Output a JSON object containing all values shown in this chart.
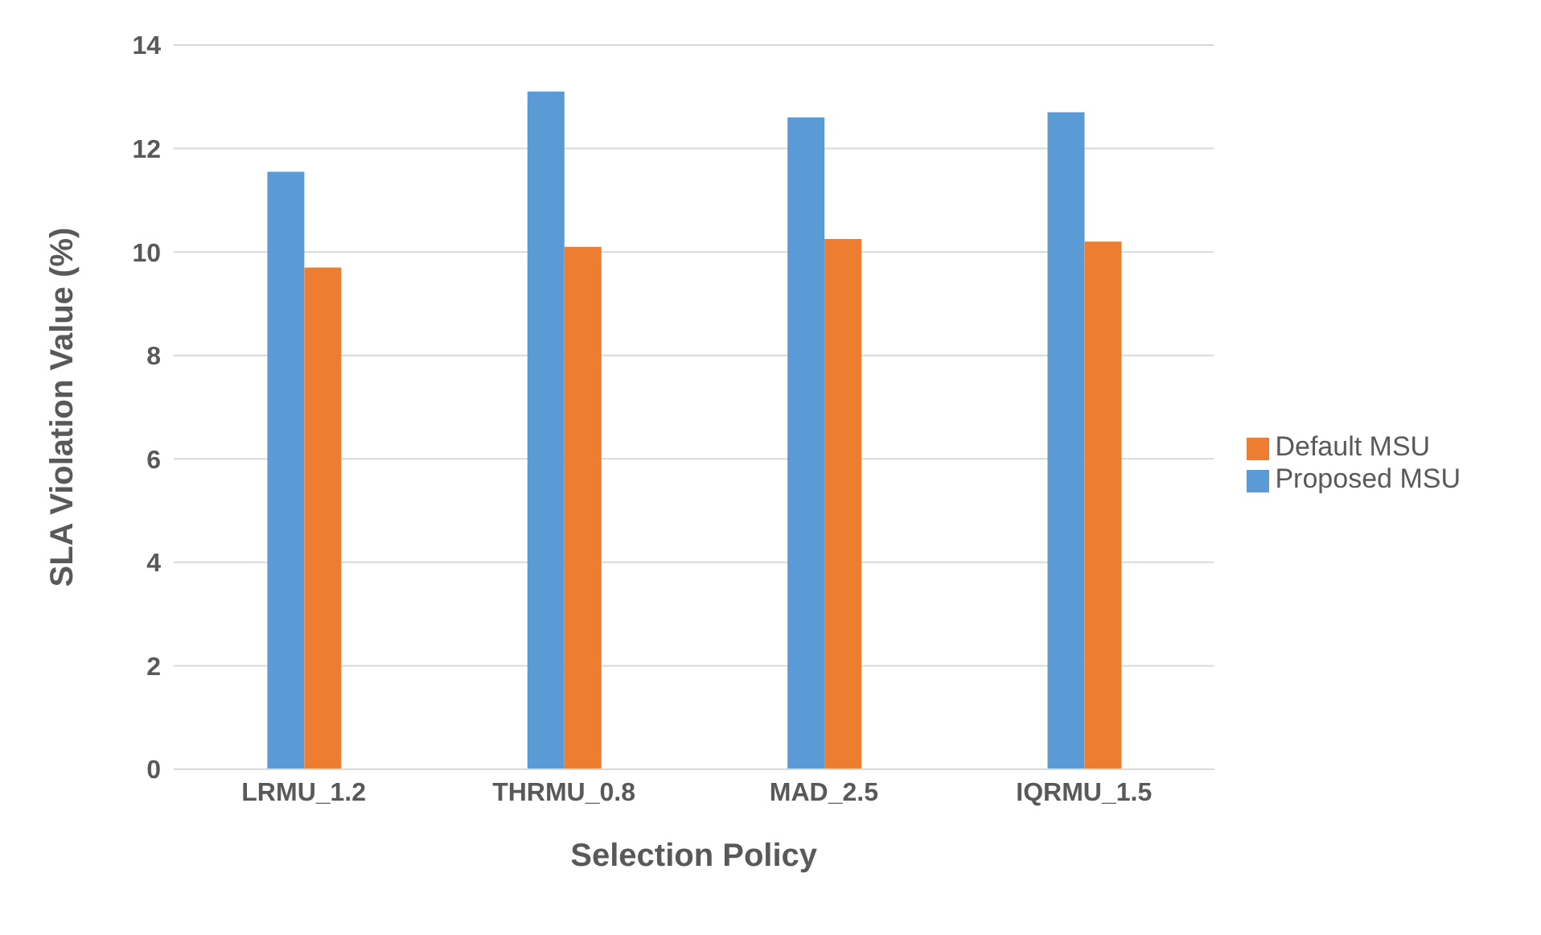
{
  "chart_data": {
    "type": "bar",
    "xlabel": "Selection Policy",
    "ylabel": "SLA Violation Value (%)",
    "categories": [
      "LRMU_1.2",
      "THRMU_0.8",
      "MAD_2.5",
      "IQRMU_1.5"
    ],
    "series": [
      {
        "name": "Proposed MSU",
        "color": "#5b9bd5",
        "values": [
          11.55,
          13.1,
          12.6,
          12.7
        ]
      },
      {
        "name": "Default MSU",
        "color": "#ed7d31",
        "values": [
          9.7,
          10.1,
          10.25,
          10.2
        ]
      }
    ],
    "ylim": [
      0,
      14
    ],
    "yticks": [
      0,
      2,
      4,
      6,
      8,
      10,
      12,
      14
    ],
    "grid": "y",
    "legend": "right"
  }
}
